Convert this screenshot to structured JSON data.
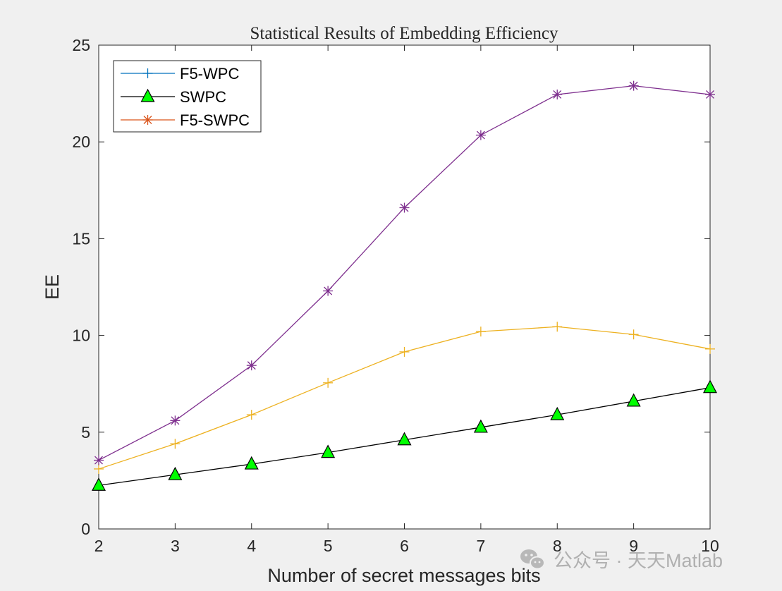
{
  "chart_data": {
    "type": "line",
    "title": "Statistical Results of Embedding Efficiency",
    "xlabel": "Number of secret messages bits",
    "ylabel": "EE",
    "xlim": [
      2,
      10
    ],
    "ylim": [
      0,
      25
    ],
    "xticks": [
      2,
      3,
      4,
      5,
      6,
      7,
      8,
      9,
      10
    ],
    "yticks": [
      0,
      5,
      10,
      15,
      20,
      25
    ],
    "grid": false,
    "legend_position": "top-left",
    "x": [
      2,
      3,
      4,
      5,
      6,
      7,
      8,
      9,
      10
    ],
    "series": [
      {
        "name": "F5-WPC",
        "values": [
          3.1,
          4.4,
          5.9,
          7.55,
          9.15,
          10.2,
          10.45,
          10.05,
          9.3
        ],
        "color": "#EDB120",
        "legend_color": "#0072BD",
        "marker": "plus"
      },
      {
        "name": "SWPC",
        "values": [
          2.25,
          2.8,
          3.35,
          3.95,
          4.6,
          5.25,
          5.9,
          6.6,
          7.3
        ],
        "color": "#000000",
        "marker": "triangle",
        "marker_fill": "#00FF00"
      },
      {
        "name": "F5-SWPC",
        "values": [
          3.55,
          5.6,
          8.45,
          12.3,
          16.6,
          20.35,
          22.45,
          22.9,
          22.45
        ],
        "color": "#7E2F8E",
        "legend_color": "#D95319",
        "marker": "asterisk"
      }
    ]
  },
  "watermark": {
    "text": "公众号 · 天天Matlab",
    "icon": "wechat-icon"
  }
}
